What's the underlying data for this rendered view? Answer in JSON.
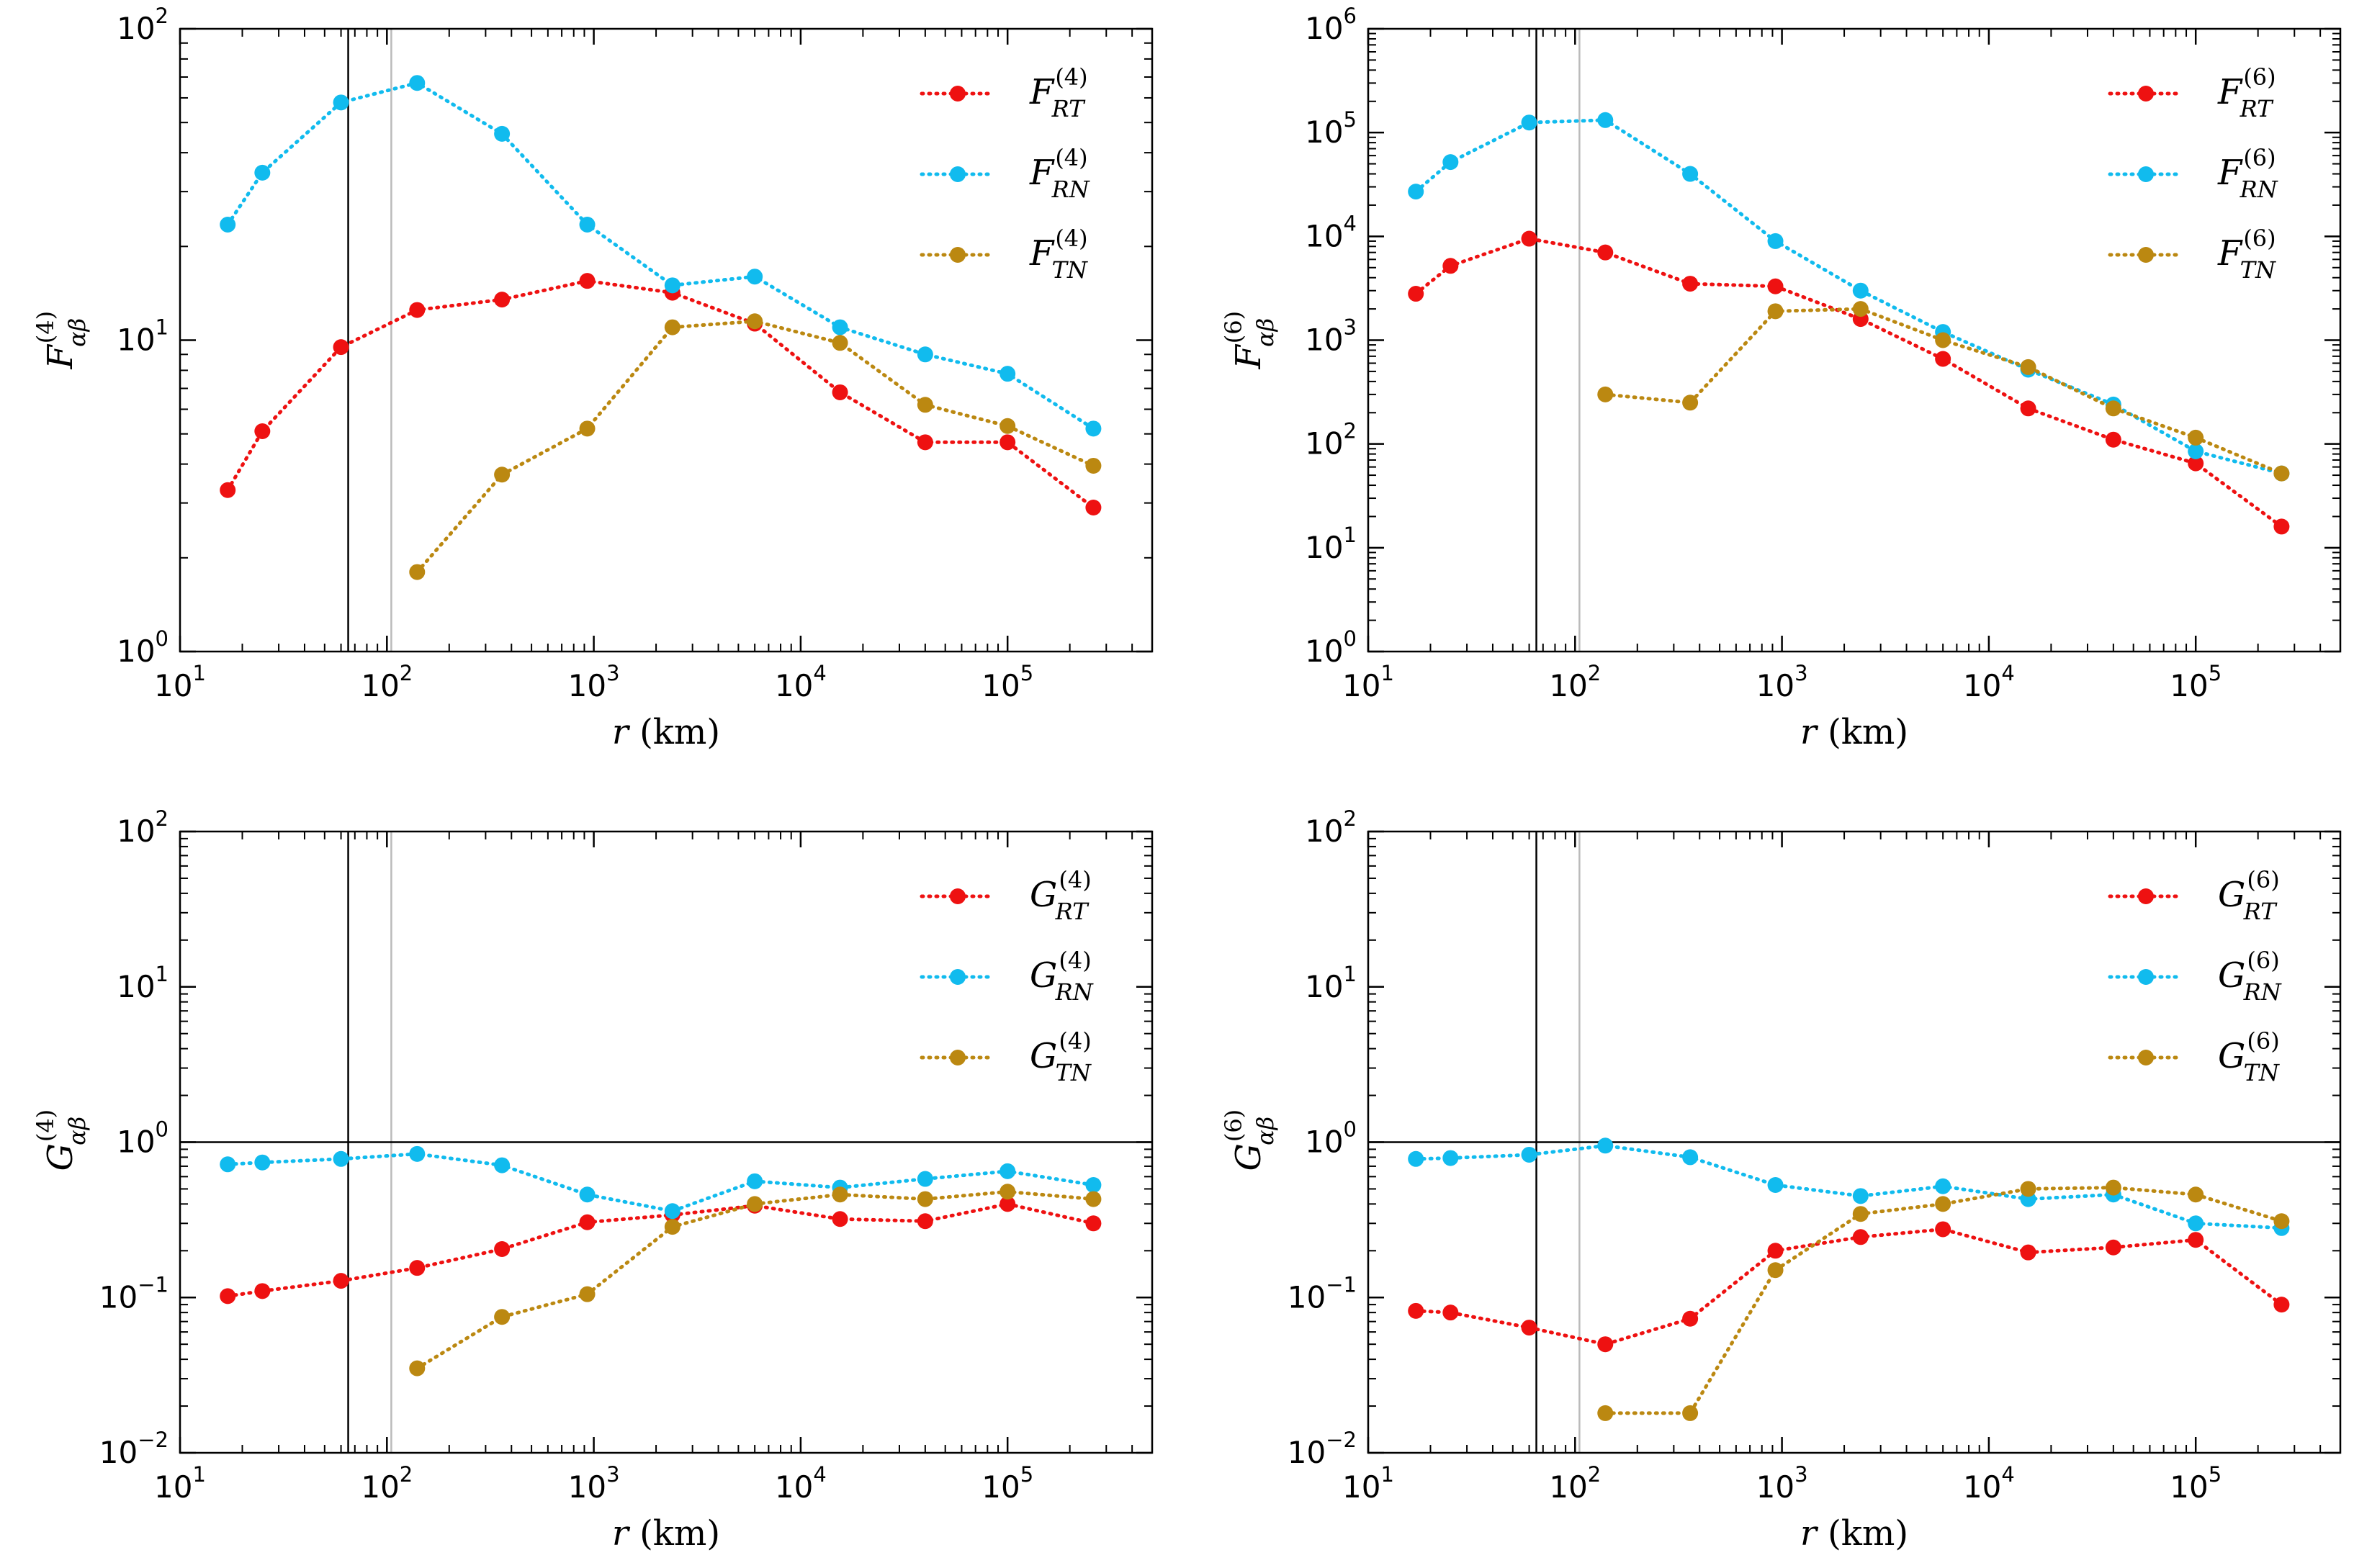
{
  "colors": {
    "RT": "#ee1111",
    "RN": "#11bbee",
    "TN": "#bb8811",
    "axis": "#000000",
    "vline_black": "#000000",
    "vline_gray": "#bbbbbb"
  },
  "chart_data": [
    {
      "type": "line",
      "panel": "top-left",
      "xscale": "log",
      "yscale": "log",
      "xlim": [
        10,
        500000
      ],
      "ylim": [
        1,
        100
      ],
      "xlabel": {
        "var": "r",
        "unit": " (km)"
      },
      "ylabel": {
        "base": "F",
        "sup": "(4)",
        "sub": "αβ"
      },
      "xticks": [
        {
          "value": 10,
          "base": "10",
          "exp": "1"
        },
        {
          "value": 100,
          "base": "10",
          "exp": "2"
        },
        {
          "value": 1000,
          "base": "10",
          "exp": "3"
        },
        {
          "value": 10000,
          "base": "10",
          "exp": "4"
        },
        {
          "value": 100000,
          "base": "10",
          "exp": "5"
        }
      ],
      "yticks": [
        {
          "value": 1,
          "base": "10",
          "exp": "0"
        },
        {
          "value": 10,
          "base": "10",
          "exp": "1"
        },
        {
          "value": 100,
          "base": "10",
          "exp": "2"
        }
      ],
      "vlines": [
        65,
        105
      ],
      "hline": null,
      "legend_position": "top-right",
      "series": [
        {
          "key": "RT",
          "label_base": "F",
          "label_sup": "(4)",
          "label_sub": "RT",
          "x": [
            17,
            25,
            60,
            140,
            360,
            930,
            2400,
            6000,
            15500,
            40000,
            100000,
            260000
          ],
          "values": [
            3.3,
            5.1,
            9.5,
            12.5,
            13.5,
            15.5,
            14.2,
            11.3,
            6.8,
            4.7,
            4.7,
            2.9
          ]
        },
        {
          "key": "RN",
          "label_base": "F",
          "label_sup": "(4)",
          "label_sub": "RN",
          "x": [
            17,
            25,
            60,
            140,
            360,
            930,
            2400,
            6000,
            15500,
            40000,
            100000,
            260000
          ],
          "values": [
            23.5,
            34.5,
            58,
            67,
            46,
            23.5,
            15,
            16,
            11,
            9,
            7.8,
            5.2
          ]
        },
        {
          "key": "TN",
          "label_base": "F",
          "label_sup": "(4)",
          "label_sub": "TN",
          "x": [
            140,
            360,
            930,
            2400,
            6000,
            15500,
            40000,
            100000,
            260000
          ],
          "values": [
            1.8,
            3.7,
            5.2,
            11,
            11.5,
            9.8,
            6.2,
            5.3,
            3.95
          ]
        }
      ]
    },
    {
      "type": "line",
      "panel": "top-right",
      "xscale": "log",
      "yscale": "log",
      "xlim": [
        10,
        500000
      ],
      "ylim": [
        1,
        1000000
      ],
      "xlabel": {
        "var": "r",
        "unit": " (km)"
      },
      "ylabel": {
        "base": "F",
        "sup": "(6)",
        "sub": "αβ"
      },
      "xticks": [
        {
          "value": 10,
          "base": "10",
          "exp": "1"
        },
        {
          "value": 100,
          "base": "10",
          "exp": "2"
        },
        {
          "value": 1000,
          "base": "10",
          "exp": "3"
        },
        {
          "value": 10000,
          "base": "10",
          "exp": "4"
        },
        {
          "value": 100000,
          "base": "10",
          "exp": "5"
        }
      ],
      "yticks": [
        {
          "value": 1,
          "base": "10",
          "exp": "0"
        },
        {
          "value": 10,
          "base": "10",
          "exp": "1"
        },
        {
          "value": 100,
          "base": "10",
          "exp": "2"
        },
        {
          "value": 1000,
          "base": "10",
          "exp": "3"
        },
        {
          "value": 10000,
          "base": "10",
          "exp": "4"
        },
        {
          "value": 100000,
          "base": "10",
          "exp": "5"
        },
        {
          "value": 1000000,
          "base": "10",
          "exp": "6"
        }
      ],
      "vlines": [
        65,
        105
      ],
      "hline": null,
      "legend_position": "top-right",
      "series": [
        {
          "key": "RT",
          "label_base": "F",
          "label_sup": "(6)",
          "label_sub": "RT",
          "x": [
            17,
            25,
            60,
            140,
            360,
            930,
            2400,
            6000,
            15500,
            40000,
            100000,
            260000
          ],
          "values": [
            2800,
            5200,
            9500,
            7000,
            3500,
            3300,
            1600,
            660,
            220,
            110,
            65,
            16
          ]
        },
        {
          "key": "RN",
          "label_base": "F",
          "label_sup": "(6)",
          "label_sub": "RN",
          "x": [
            17,
            25,
            60,
            140,
            360,
            930,
            2400,
            6000,
            15500,
            40000,
            100000,
            260000
          ],
          "values": [
            27000,
            52000,
            125000,
            132000,
            40000,
            9000,
            3000,
            1200,
            520,
            240,
            85,
            52
          ]
        },
        {
          "key": "TN",
          "label_base": "F",
          "label_sup": "(6)",
          "label_sub": "TN",
          "x": [
            140,
            360,
            930,
            2400,
            6000,
            15500,
            40000,
            100000,
            260000
          ],
          "values": [
            300,
            250,
            1900,
            2000,
            1000,
            550,
            220,
            115,
            52
          ]
        }
      ]
    },
    {
      "type": "line",
      "panel": "bottom-left",
      "xscale": "log",
      "yscale": "log",
      "xlim": [
        10,
        500000
      ],
      "ylim": [
        0.01,
        100
      ],
      "xlabel": {
        "var": "r",
        "unit": " (km)"
      },
      "ylabel": {
        "base": "G",
        "sup": "(4)",
        "sub": "αβ"
      },
      "xticks": [
        {
          "value": 10,
          "base": "10",
          "exp": "1"
        },
        {
          "value": 100,
          "base": "10",
          "exp": "2"
        },
        {
          "value": 1000,
          "base": "10",
          "exp": "3"
        },
        {
          "value": 10000,
          "base": "10",
          "exp": "4"
        },
        {
          "value": 100000,
          "base": "10",
          "exp": "5"
        }
      ],
      "yticks": [
        {
          "value": 0.01,
          "base": "10",
          "exp": "−2"
        },
        {
          "value": 0.1,
          "base": "10",
          "exp": "−1"
        },
        {
          "value": 1,
          "base": "10",
          "exp": "0"
        },
        {
          "value": 10,
          "base": "10",
          "exp": "1"
        },
        {
          "value": 100,
          "base": "10",
          "exp": "2"
        }
      ],
      "vlines": [
        65,
        105
      ],
      "hline": 1,
      "legend_position": "top-right",
      "series": [
        {
          "key": "RT",
          "label_base": "G",
          "label_sup": "(4)",
          "label_sub": "RT",
          "x": [
            17,
            25,
            60,
            140,
            360,
            930,
            2400,
            6000,
            15500,
            40000,
            100000,
            260000
          ],
          "values": [
            0.102,
            0.11,
            0.128,
            0.155,
            0.205,
            0.305,
            0.34,
            0.39,
            0.32,
            0.31,
            0.4,
            0.3
          ]
        },
        {
          "key": "RN",
          "label_base": "G",
          "label_sup": "(4)",
          "label_sub": "RN",
          "x": [
            17,
            25,
            60,
            140,
            360,
            930,
            2400,
            6000,
            15500,
            40000,
            100000,
            260000
          ],
          "values": [
            0.72,
            0.74,
            0.78,
            0.84,
            0.71,
            0.46,
            0.36,
            0.56,
            0.51,
            0.58,
            0.65,
            0.53
          ]
        },
        {
          "key": "TN",
          "label_base": "G",
          "label_sup": "(4)",
          "label_sub": "TN",
          "x": [
            140,
            360,
            930,
            2400,
            6000,
            15500,
            40000,
            100000,
            260000
          ],
          "values": [
            0.035,
            0.075,
            0.105,
            0.285,
            0.4,
            0.46,
            0.43,
            0.48,
            0.43
          ]
        }
      ]
    },
    {
      "type": "line",
      "panel": "bottom-right",
      "xscale": "log",
      "yscale": "log",
      "xlim": [
        10,
        500000
      ],
      "ylim": [
        0.01,
        100
      ],
      "xlabel": {
        "var": "r",
        "unit": " (km)"
      },
      "ylabel": {
        "base": "G",
        "sup": "(6)",
        "sub": "αβ"
      },
      "xticks": [
        {
          "value": 10,
          "base": "10",
          "exp": "1"
        },
        {
          "value": 100,
          "base": "10",
          "exp": "2"
        },
        {
          "value": 1000,
          "base": "10",
          "exp": "3"
        },
        {
          "value": 10000,
          "base": "10",
          "exp": "4"
        },
        {
          "value": 100000,
          "base": "10",
          "exp": "5"
        }
      ],
      "yticks": [
        {
          "value": 0.01,
          "base": "10",
          "exp": "−2"
        },
        {
          "value": 0.1,
          "base": "10",
          "exp": "−1"
        },
        {
          "value": 1,
          "base": "10",
          "exp": "0"
        },
        {
          "value": 10,
          "base": "10",
          "exp": "1"
        },
        {
          "value": 100,
          "base": "10",
          "exp": "2"
        }
      ],
      "vlines": [
        65,
        105
      ],
      "hline": 1,
      "legend_position": "top-right",
      "series": [
        {
          "key": "RT",
          "label_base": "G",
          "label_sup": "(6)",
          "label_sub": "RT",
          "x": [
            17,
            25,
            60,
            140,
            360,
            930,
            2400,
            6000,
            15500,
            40000,
            100000,
            260000
          ],
          "values": [
            0.082,
            0.08,
            0.064,
            0.05,
            0.073,
            0.2,
            0.245,
            0.275,
            0.195,
            0.21,
            0.235,
            0.09
          ]
        },
        {
          "key": "RN",
          "label_base": "G",
          "label_sup": "(6)",
          "label_sub": "RN",
          "x": [
            17,
            25,
            60,
            140,
            360,
            930,
            2400,
            6000,
            15500,
            40000,
            100000,
            260000
          ],
          "values": [
            0.78,
            0.79,
            0.83,
            0.95,
            0.8,
            0.53,
            0.45,
            0.52,
            0.43,
            0.46,
            0.3,
            0.28
          ]
        },
        {
          "key": "TN",
          "label_base": "G",
          "label_sup": "(6)",
          "label_sub": "TN",
          "x": [
            140,
            360,
            930,
            2400,
            6000,
            15500,
            40000,
            100000,
            260000
          ],
          "values": [
            0.018,
            0.018,
            0.15,
            0.345,
            0.4,
            0.5,
            0.51,
            0.46,
            0.31
          ]
        }
      ]
    }
  ]
}
